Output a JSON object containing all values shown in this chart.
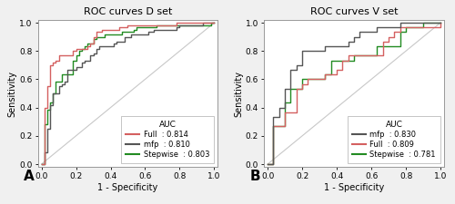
{
  "panel_A": {
    "title": "ROC curves D set",
    "xlabel": "1 - Specificity",
    "ylabel": "Sensitivity",
    "label": "A",
    "legend_title": "AUC",
    "curves": [
      {
        "name": "Full",
        "auc": "0.814",
        "color": "#d46060",
        "lw": 1.0
      },
      {
        "name": "mfp",
        "auc": "0.810",
        "color": "#555555",
        "lw": 1.0
      },
      {
        "name": "Stepwise",
        "auc": "0.803",
        "color": "#228B22",
        "lw": 1.0
      }
    ],
    "auc_targets": [
      0.814,
      0.81,
      0.803
    ],
    "seeds": [
      42,
      7,
      13
    ],
    "n_points": 60
  },
  "panel_B": {
    "title": "ROC curves V set",
    "xlabel": "1 - Specificity",
    "ylabel": "Sensitivity",
    "label": "B",
    "legend_title": "AUC",
    "curves": [
      {
        "name": "mfp",
        "auc": "0.830",
        "color": "#555555",
        "lw": 1.0
      },
      {
        "name": "Full",
        "auc": "0.809",
        "color": "#d46060",
        "lw": 1.0
      },
      {
        "name": "Stepwise",
        "auc": "0.781",
        "color": "#228B22",
        "lw": 1.0
      }
    ],
    "auc_targets": [
      0.83,
      0.809,
      0.781
    ],
    "seeds": [
      99,
      55,
      77
    ],
    "n_points": 30
  },
  "fig_bg": "#f0f0f0",
  "ax_bg": "#ffffff",
  "tick_fontsize": 6.5,
  "label_fontsize": 7.0,
  "title_fontsize": 8.0,
  "legend_fontsize": 6.0,
  "diag_color": "#c8c8c8",
  "diag_lw": 0.8
}
